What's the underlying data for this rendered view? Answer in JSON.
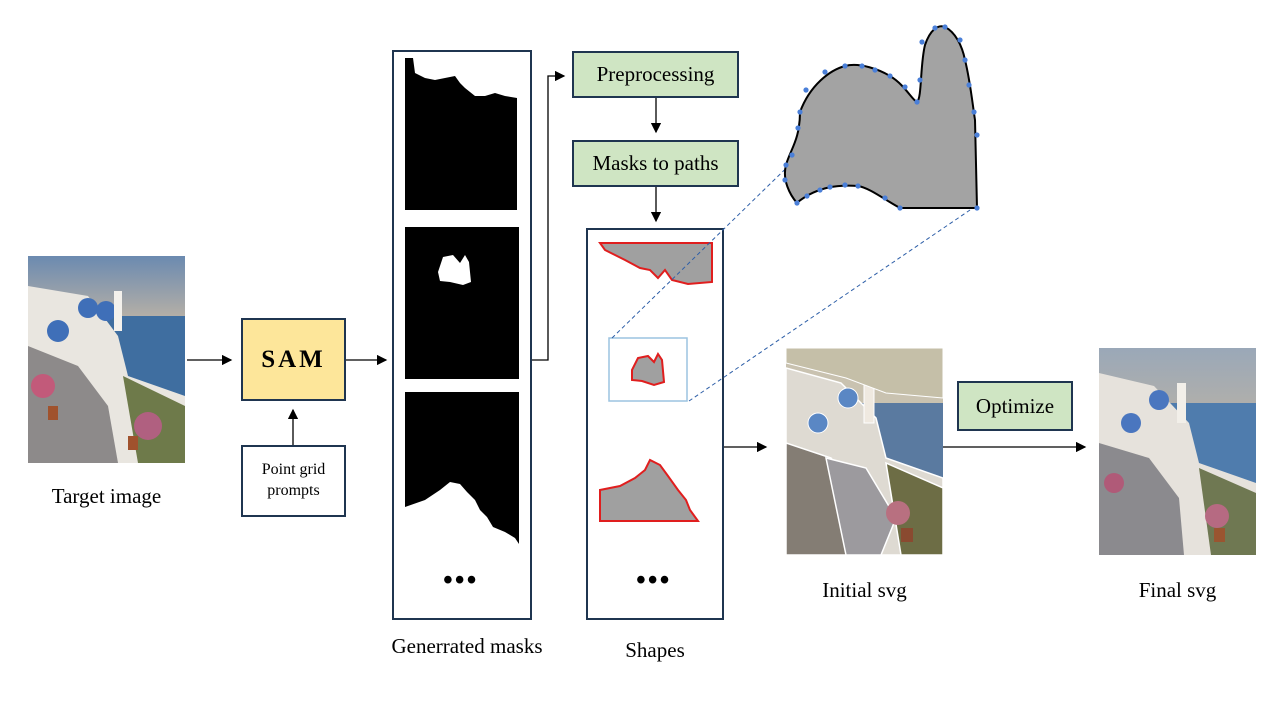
{
  "labels": {
    "target_image": "Target image",
    "sam": "SAM",
    "point_grid_prompts": "Point grid\nprompts",
    "generated_masks": "Generrated masks",
    "preprocessing": "Preprocessing",
    "masks_to_paths": "Masks to paths",
    "shapes": "Shapes",
    "initial_svg": "Initial svg",
    "optimize": "Optimize",
    "final_svg": "Final svg",
    "ellipsis_masks": "•••",
    "ellipsis_shapes": "•••"
  },
  "colors": {
    "box_border": "#1f3550",
    "sam_fill": "#fde69a",
    "step_fill": "#cfe5c3",
    "shape_fill": "#a0a0a0",
    "shape_outline": "#e01e1e",
    "control_point": "#4a7fd8",
    "zoom_box": "#9cc3e0"
  }
}
